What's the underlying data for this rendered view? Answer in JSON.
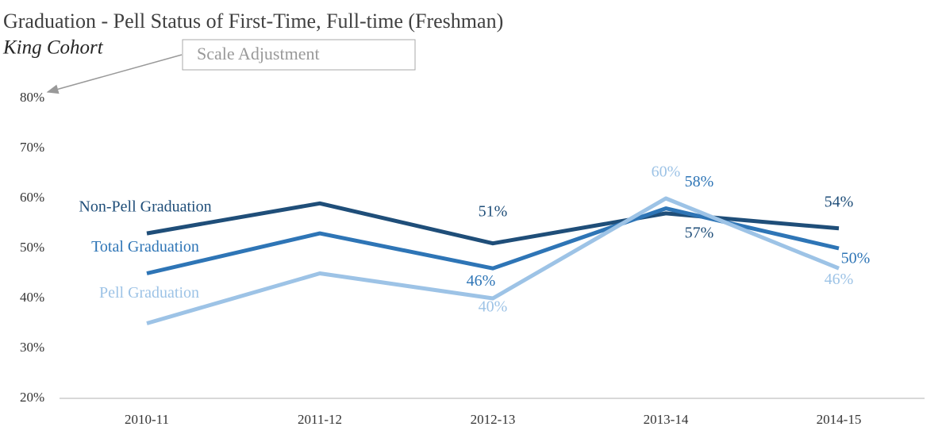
{
  "chart_data": {
    "type": "line",
    "title": "Graduation - Pell Status of First-Time, Full-time (Freshman)",
    "subtitle": "King Cohort",
    "annotation": "Scale Adjustment",
    "categories": [
      "2010-11",
      "2011-12",
      "2012-13",
      "2013-14",
      "2014-15"
    ],
    "series": [
      {
        "name": "Non-Pell Graduation",
        "color": "#1f4e79",
        "values": [
          53,
          59,
          51,
          57,
          54
        ],
        "value_labels": [
          null,
          null,
          "51%",
          "57%",
          "54%"
        ]
      },
      {
        "name": "Total Graduation",
        "color": "#2e75b6",
        "values": [
          45,
          53,
          46,
          58,
          50
        ],
        "value_labels": [
          null,
          null,
          "46%",
          "58%",
          "50%"
        ]
      },
      {
        "name": "Pell Graduation",
        "color": "#9dc3e6",
        "values": [
          35,
          45,
          40,
          60,
          46
        ],
        "value_labels": [
          null,
          null,
          "40%",
          "60%",
          "46%"
        ]
      }
    ],
    "ylim": [
      20,
      80
    ],
    "yticks": [
      {
        "value": 20,
        "label": "20%"
      },
      {
        "value": 30,
        "label": "30%"
      },
      {
        "value": 40,
        "label": "40%"
      },
      {
        "value": 50,
        "label": "50%"
      },
      {
        "value": 60,
        "label": "60%"
      },
      {
        "value": 70,
        "label": "70%"
      },
      {
        "value": 80,
        "label": "80%"
      }
    ],
    "grid": false
  }
}
